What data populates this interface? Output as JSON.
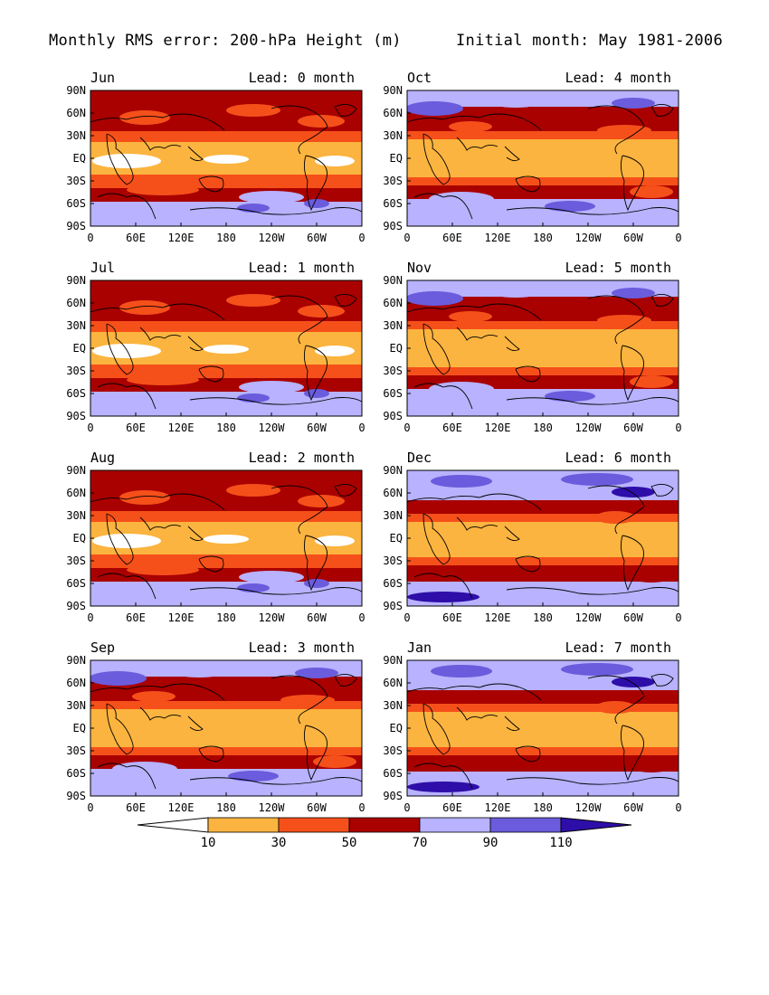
{
  "title": {
    "left": "Monthly RMS error: 200-hPa Height (m)",
    "right": "Initial month: May 1981-2006"
  },
  "lat_ticks": [
    "90N",
    "60N",
    "30N",
    "EQ",
    "30S",
    "60S",
    "90S"
  ],
  "lon_ticks": [
    "0",
    "60E",
    "120E",
    "180",
    "120W",
    "60W",
    "0"
  ],
  "lead_prefix": "Lead:",
  "lead_suffix": "month",
  "panels": [
    {
      "month": "Jun",
      "lead": 0,
      "pattern": "warm"
    },
    {
      "month": "Oct",
      "lead": 4,
      "pattern": "mixed"
    },
    {
      "month": "Jul",
      "lead": 1,
      "pattern": "warm"
    },
    {
      "month": "Nov",
      "lead": 5,
      "pattern": "mixed"
    },
    {
      "month": "Aug",
      "lead": 2,
      "pattern": "warm"
    },
    {
      "month": "Dec",
      "lead": 6,
      "pattern": "cool"
    },
    {
      "month": "Sep",
      "lead": 3,
      "pattern": "mixed"
    },
    {
      "month": "Jan",
      "lead": 7,
      "pattern": "cool"
    }
  ],
  "colorbar": {
    "labels": [
      "10",
      "30",
      "50",
      "70",
      "90",
      "110"
    ],
    "colors": [
      "#ffffff",
      "#fbb43f",
      "#f5501a",
      "#a90000",
      "#b8b2ff",
      "#6a5cdc",
      "#2e0ea8"
    ]
  },
  "palette": {
    "white": "#ffffff",
    "light_orange": "#fbb43f",
    "orange_red": "#f5501a",
    "dark_red": "#a90000",
    "lavender": "#b8b2ff",
    "medium_blue": "#6a5cdc",
    "dark_blue": "#2e0ea8"
  }
}
